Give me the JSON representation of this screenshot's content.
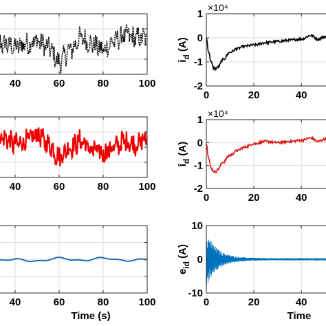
{
  "chart_data": [
    {
      "id": "left-top",
      "type": "line",
      "xlim": [
        30,
        100
      ],
      "xticks": [
        40,
        60,
        80,
        100
      ],
      "xticklabels": [
        "40",
        "60",
        "80",
        "100"
      ],
      "xlabel": "",
      "ylabel": "",
      "grid": true,
      "series": [
        {
          "color": "#000000",
          "style": "dotted-noisy",
          "x": [
            30,
            35,
            40,
            45,
            50,
            55,
            60,
            65,
            70,
            75,
            80,
            85,
            90,
            95,
            100
          ],
          "y": [
            0.55,
            0.5,
            0.45,
            0.5,
            0.55,
            0.45,
            0.2,
            0.4,
            0.6,
            0.5,
            0.4,
            0.55,
            0.65,
            0.6,
            0.6
          ]
        }
      ]
    },
    {
      "id": "left-middle",
      "type": "line",
      "xlim": [
        30,
        100
      ],
      "xticks": [
        40,
        60,
        80,
        100
      ],
      "xticklabels": [
        "40",
        "60",
        "80",
        "100"
      ],
      "xlabel": "",
      "ylabel": "",
      "grid": true,
      "series": [
        {
          "color": "#ee0000",
          "style": "noisy",
          "x": [
            30,
            35,
            40,
            45,
            50,
            55,
            60,
            65,
            70,
            75,
            80,
            85,
            90,
            95,
            100
          ],
          "y": [
            0.7,
            0.65,
            0.55,
            0.6,
            0.7,
            0.55,
            0.35,
            0.5,
            0.6,
            0.45,
            0.4,
            0.5,
            0.6,
            0.55,
            0.65
          ]
        }
      ]
    },
    {
      "id": "left-bottom",
      "type": "line",
      "xlim": [
        30,
        100
      ],
      "xticks": [
        40,
        60,
        80,
        100
      ],
      "xticklabels": [
        "40",
        "60",
        "80",
        "100"
      ],
      "xlabel": "Time (s)",
      "ylabel": "",
      "grid": true,
      "series": [
        {
          "color": "#1f6fb4",
          "style": "smooth",
          "x": [
            30,
            40,
            50,
            60,
            70,
            80,
            90,
            100
          ],
          "y": [
            0.48,
            0.5,
            0.47,
            0.52,
            0.48,
            0.52,
            0.48,
            0.5
          ]
        }
      ]
    },
    {
      "id": "right-top",
      "type": "line",
      "exponent": "×10⁴",
      "xlim": [
        0,
        55
      ],
      "ylim": [
        -2,
        1
      ],
      "xticks": [
        0,
        20,
        40
      ],
      "xticklabels": [
        "0",
        "20",
        "40"
      ],
      "yticks": [
        -2,
        -1,
        0,
        1
      ],
      "yticklabels": [
        "-2",
        "-1",
        "0",
        "1"
      ],
      "xlabel": "",
      "ylabel": "i",
      "ylabel_sub": "d",
      "ylabel_unit": " (A)",
      "grid": true,
      "series": [
        {
          "color": "#000000",
          "style": "jagged",
          "x": [
            0,
            1,
            2,
            3,
            4,
            5,
            7,
            10,
            13,
            16,
            20,
            25,
            30,
            35,
            40,
            44,
            47,
            50,
            55
          ],
          "y": [
            0,
            -0.6,
            -1.0,
            -1.25,
            -1.28,
            -1.2,
            -0.9,
            -0.6,
            -0.45,
            -0.35,
            -0.3,
            -0.2,
            -0.15,
            -0.1,
            -0.05,
            0.1,
            -0.05,
            0.05,
            0.0
          ]
        }
      ]
    },
    {
      "id": "right-middle",
      "type": "line",
      "exponent": "×10⁴",
      "xlim": [
        0,
        55
      ],
      "ylim": [
        -2,
        1
      ],
      "xticks": [
        0,
        20,
        40
      ],
      "xticklabels": [
        "0",
        "20",
        "40"
      ],
      "yticks": [
        -2,
        -1,
        0,
        1
      ],
      "yticklabels": [
        "-2",
        "-1",
        "0",
        "1"
      ],
      "xlabel": "",
      "ylabel": "î",
      "ylabel_sub": "d",
      "ylabel_unit": " (A)",
      "grid": true,
      "series": [
        {
          "color": "#dd1111",
          "style": "jagged",
          "x": [
            0,
            1,
            2,
            3,
            4,
            5,
            7,
            10,
            13,
            16,
            20,
            25,
            30,
            35,
            40,
            44,
            47,
            50,
            55
          ],
          "y": [
            0,
            -0.7,
            -1.1,
            -1.25,
            -1.27,
            -1.15,
            -0.85,
            -0.55,
            -0.35,
            -0.2,
            -0.05,
            0.05,
            0.0,
            0.05,
            0.1,
            0.2,
            0.05,
            0.15,
            0.1
          ]
        }
      ]
    },
    {
      "id": "right-bottom",
      "type": "line",
      "xlim": [
        0,
        55
      ],
      "ylim": [
        -10,
        10
      ],
      "xticks": [
        0,
        20,
        40
      ],
      "xticklabels": [
        "0",
        "20",
        "40"
      ],
      "yticks": [
        -10,
        0,
        10
      ],
      "yticklabels": [
        "-10",
        "0",
        "10"
      ],
      "xlabel": "Time",
      "ylabel": "e",
      "ylabel_sub": "id",
      "ylabel_unit": " (A)",
      "grid": true,
      "series": [
        {
          "color": "#0072bd",
          "style": "decaying-oscillation",
          "amplitude0": 8,
          "decay": 0.22,
          "floor": 0.35
        }
      ]
    }
  ]
}
